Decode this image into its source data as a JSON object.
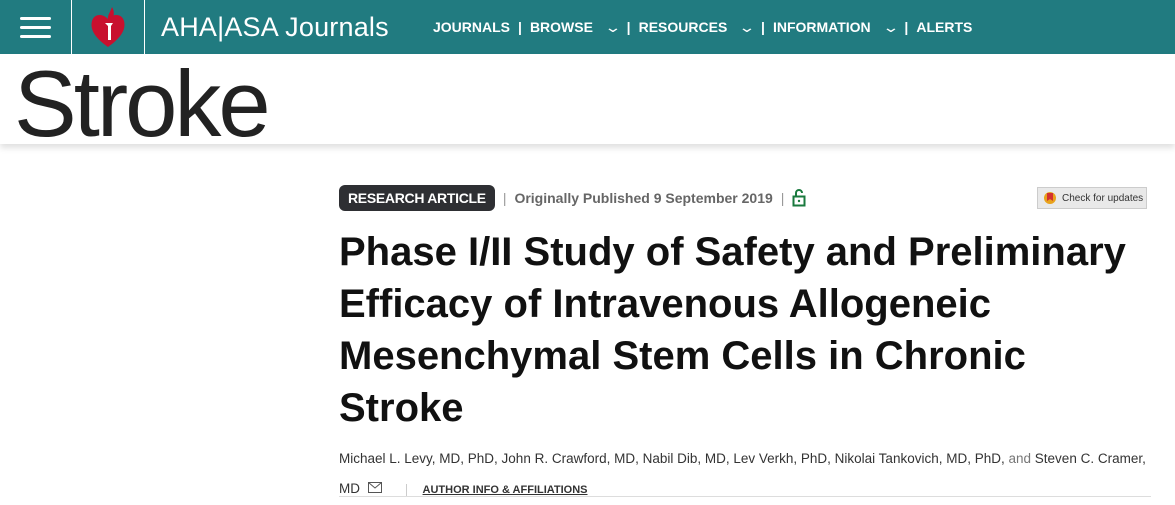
{
  "header": {
    "brand": "AHA|ASA Journals",
    "nav": [
      {
        "label": "JOURNALS",
        "dropdown": false
      },
      {
        "label": "BROWSE",
        "dropdown": true
      },
      {
        "label": "RESOURCES",
        "dropdown": true
      },
      {
        "label": "INFORMATION",
        "dropdown": true
      },
      {
        "label": "ALERTS",
        "dropdown": false
      }
    ],
    "color": "#217b80"
  },
  "journal": {
    "name": "Stroke"
  },
  "article": {
    "type": "RESEARCH ARTICLE",
    "published": "Originally Published 9 September 2019",
    "access_icon": "unlock-icon",
    "check_updates": "Check for updates",
    "title": "Phase I/II Study of Safety and Preliminary Efficacy of Intravenous Allogeneic Mesenchymal Stem Cells in Chronic Stroke",
    "authors": "Michael L. Levy, MD, PhD, John R. Crawford, MD, Nabil Dib, MD, Lev Verkh, PhD, Nikolai Tankovich, MD, PhD,",
    "and": "and",
    "last_author": "Steven C. Cramer, MD",
    "author_info": "AUTHOR INFO & AFFILIATIONS"
  }
}
